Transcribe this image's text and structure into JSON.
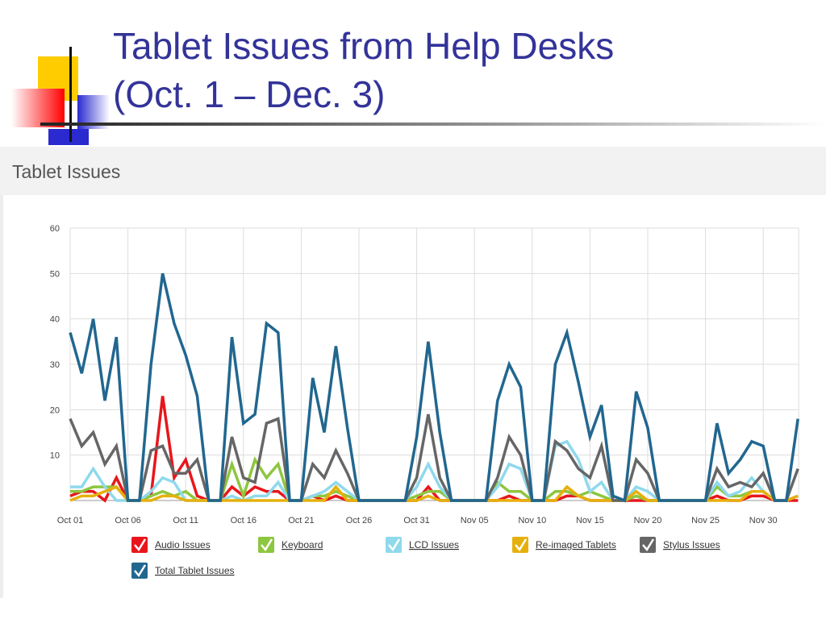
{
  "slide_title": [
    "Tablet Issues from Help Desks",
    "(Oct. 1 – Dec. 3)"
  ],
  "chart_data": {
    "type": "line",
    "title": "Tablet Issues",
    "categories": [
      "Oct 01",
      null,
      null,
      null,
      null,
      "Oct 06",
      null,
      null,
      null,
      null,
      "Oct 11",
      null,
      null,
      null,
      null,
      "Oct 16",
      null,
      null,
      null,
      null,
      "Oct 21",
      null,
      null,
      null,
      null,
      "Oct 26",
      null,
      null,
      null,
      null,
      "Oct 31",
      null,
      null,
      null,
      null,
      "Nov 05",
      null,
      null,
      null,
      null,
      "Nov 10",
      null,
      null,
      null,
      null,
      "Nov 15",
      null,
      null,
      null,
      null,
      "Nov 20",
      null,
      null,
      null,
      null,
      "Nov 25",
      null,
      null,
      null,
      null,
      "Nov 30",
      null,
      null,
      null
    ],
    "ylim": [
      0,
      60
    ],
    "yticks": [
      10,
      20,
      30,
      40,
      50,
      60
    ],
    "grid": true,
    "legend": "bottom",
    "series": [
      {
        "name": "Audio Issues",
        "color": "#e8161b",
        "values": [
          1,
          2,
          2,
          0,
          5,
          0,
          0,
          1,
          23,
          5,
          9,
          1,
          0,
          0,
          3,
          1,
          3,
          2,
          2,
          0,
          0,
          1,
          0,
          1,
          0,
          0,
          0,
          0,
          0,
          0,
          0,
          3,
          0,
          0,
          0,
          0,
          0,
          0,
          1,
          0,
          0,
          0,
          0,
          1,
          1,
          0,
          0,
          0,
          0,
          0,
          0,
          0,
          0,
          0,
          0,
          0,
          1,
          0,
          0,
          1,
          1,
          0,
          0,
          0
        ]
      },
      {
        "name": "Keyboard",
        "color": "#8dc63f",
        "values": [
          2,
          2,
          3,
          3,
          3,
          0,
          0,
          1,
          2,
          1,
          2,
          0,
          0,
          0,
          8,
          1,
          9,
          5,
          8,
          0,
          0,
          1,
          1,
          2,
          1,
          0,
          0,
          0,
          0,
          0,
          1,
          2,
          2,
          0,
          0,
          0,
          0,
          4,
          2,
          2,
          0,
          0,
          2,
          2,
          1,
          2,
          1,
          0,
          0,
          1,
          0,
          0,
          0,
          0,
          0,
          0,
          3,
          1,
          1,
          2,
          2,
          0,
          0,
          1
        ]
      },
      {
        "name": "LCD Issues",
        "color": "#8fd9ec",
        "values": [
          3,
          3,
          7,
          3,
          0,
          0,
          0,
          2,
          5,
          4,
          0,
          0,
          0,
          0,
          1,
          0,
          1,
          1,
          4,
          0,
          0,
          1,
          2,
          4,
          2,
          0,
          0,
          0,
          0,
          0,
          3,
          8,
          3,
          0,
          0,
          0,
          0,
          3,
          8,
          7,
          0,
          0,
          12,
          13,
          9,
          2,
          4,
          0,
          0,
          3,
          2,
          0,
          0,
          0,
          0,
          0,
          4,
          1,
          2,
          5,
          2,
          0,
          0,
          1
        ]
      },
      {
        "name": "Re-imaged Tablets",
        "color": "#e6b00c",
        "values": [
          0,
          1,
          1,
          2,
          3,
          0,
          0,
          0,
          1,
          1,
          0,
          0,
          0,
          0,
          0,
          0,
          0,
          0,
          0,
          0,
          0,
          0,
          0,
          3,
          0,
          0,
          0,
          0,
          0,
          0,
          0,
          1,
          0,
          0,
          0,
          0,
          0,
          0,
          0,
          0,
          0,
          0,
          0,
          3,
          1,
          0,
          0,
          0,
          0,
          2,
          0,
          0,
          0,
          0,
          0,
          0,
          0,
          0,
          0,
          2,
          2,
          0,
          0,
          1
        ]
      },
      {
        "name": "Stylus Issues",
        "color": "#666666",
        "values": [
          18,
          12,
          15,
          8,
          12,
          0,
          0,
          11,
          12,
          6,
          6,
          9,
          0,
          0,
          14,
          5,
          4,
          17,
          18,
          0,
          0,
          8,
          5,
          11,
          6,
          0,
          0,
          0,
          0,
          0,
          5,
          19,
          5,
          0,
          0,
          0,
          0,
          5,
          14,
          10,
          0,
          0,
          13,
          11,
          7,
          5,
          12,
          0,
          0,
          9,
          6,
          0,
          0,
          0,
          0,
          0,
          7,
          3,
          4,
          3,
          6,
          0,
          0,
          7
        ]
      },
      {
        "name": "Total Tablet Issues",
        "color": "#21678f",
        "values": [
          37,
          28,
          40,
          22,
          36,
          0,
          0,
          30,
          50,
          39,
          32,
          23,
          0,
          0,
          36,
          17,
          19,
          39,
          37,
          0,
          0,
          27,
          15,
          34,
          16,
          0,
          0,
          0,
          0,
          0,
          14,
          35,
          15,
          0,
          0,
          0,
          0,
          22,
          30,
          25,
          0,
          0,
          30,
          37,
          26,
          14,
          21,
          1,
          0,
          24,
          16,
          0,
          0,
          0,
          0,
          0,
          17,
          6,
          9,
          13,
          12,
          0,
          0,
          18
        ]
      }
    ]
  }
}
